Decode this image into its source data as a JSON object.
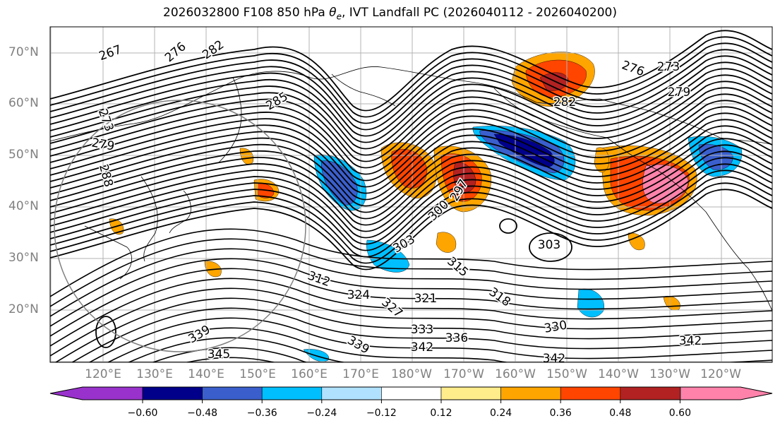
{
  "title": "2026032800 F108 850 hPa θe, IVT Landfall PC (2026040112 - 2026040200)",
  "title_parts": {
    "prefix": "2026032800 F108 850 hPa ",
    "theta": "θ",
    "sub": "e",
    "suffix": ", IVT Landfall PC (2026040112 - 2026040200)"
  },
  "lat_labels": [
    "70°N",
    "60°N",
    "50°N",
    "40°N",
    "30°N",
    "20°N"
  ],
  "lon_labels": [
    "120°E",
    "130°E",
    "140°E",
    "150°E",
    "160°E",
    "170°E",
    "180°W",
    "170°W",
    "160°W",
    "150°W",
    "140°W",
    "130°W",
    "120°W"
  ],
  "contour_labels": [
    "267",
    "276",
    "282",
    "273",
    "279",
    "288",
    "285",
    "276",
    "273",
    "279",
    "282",
    "297",
    "300",
    "303",
    "303",
    "312",
    "315",
    "318",
    "321",
    "324",
    "327",
    "330",
    "333",
    "336",
    "339",
    "342",
    "342",
    "342",
    "345",
    "339"
  ],
  "colorbar": {
    "ticks": [
      "−0.60",
      "−0.48",
      "−0.36",
      "−0.24",
      "−0.12",
      "0.12",
      "0.24",
      "0.36",
      "0.48",
      "0.60"
    ],
    "colors": [
      "#9932CC",
      "#00008B",
      "#3A5FCD",
      "#00BFFF",
      "#B0E2FF",
      "#FFFFFF",
      "#FFEC8B",
      "#FFA500",
      "#FF4500",
      "#B22222",
      "#FF82AB"
    ]
  }
}
